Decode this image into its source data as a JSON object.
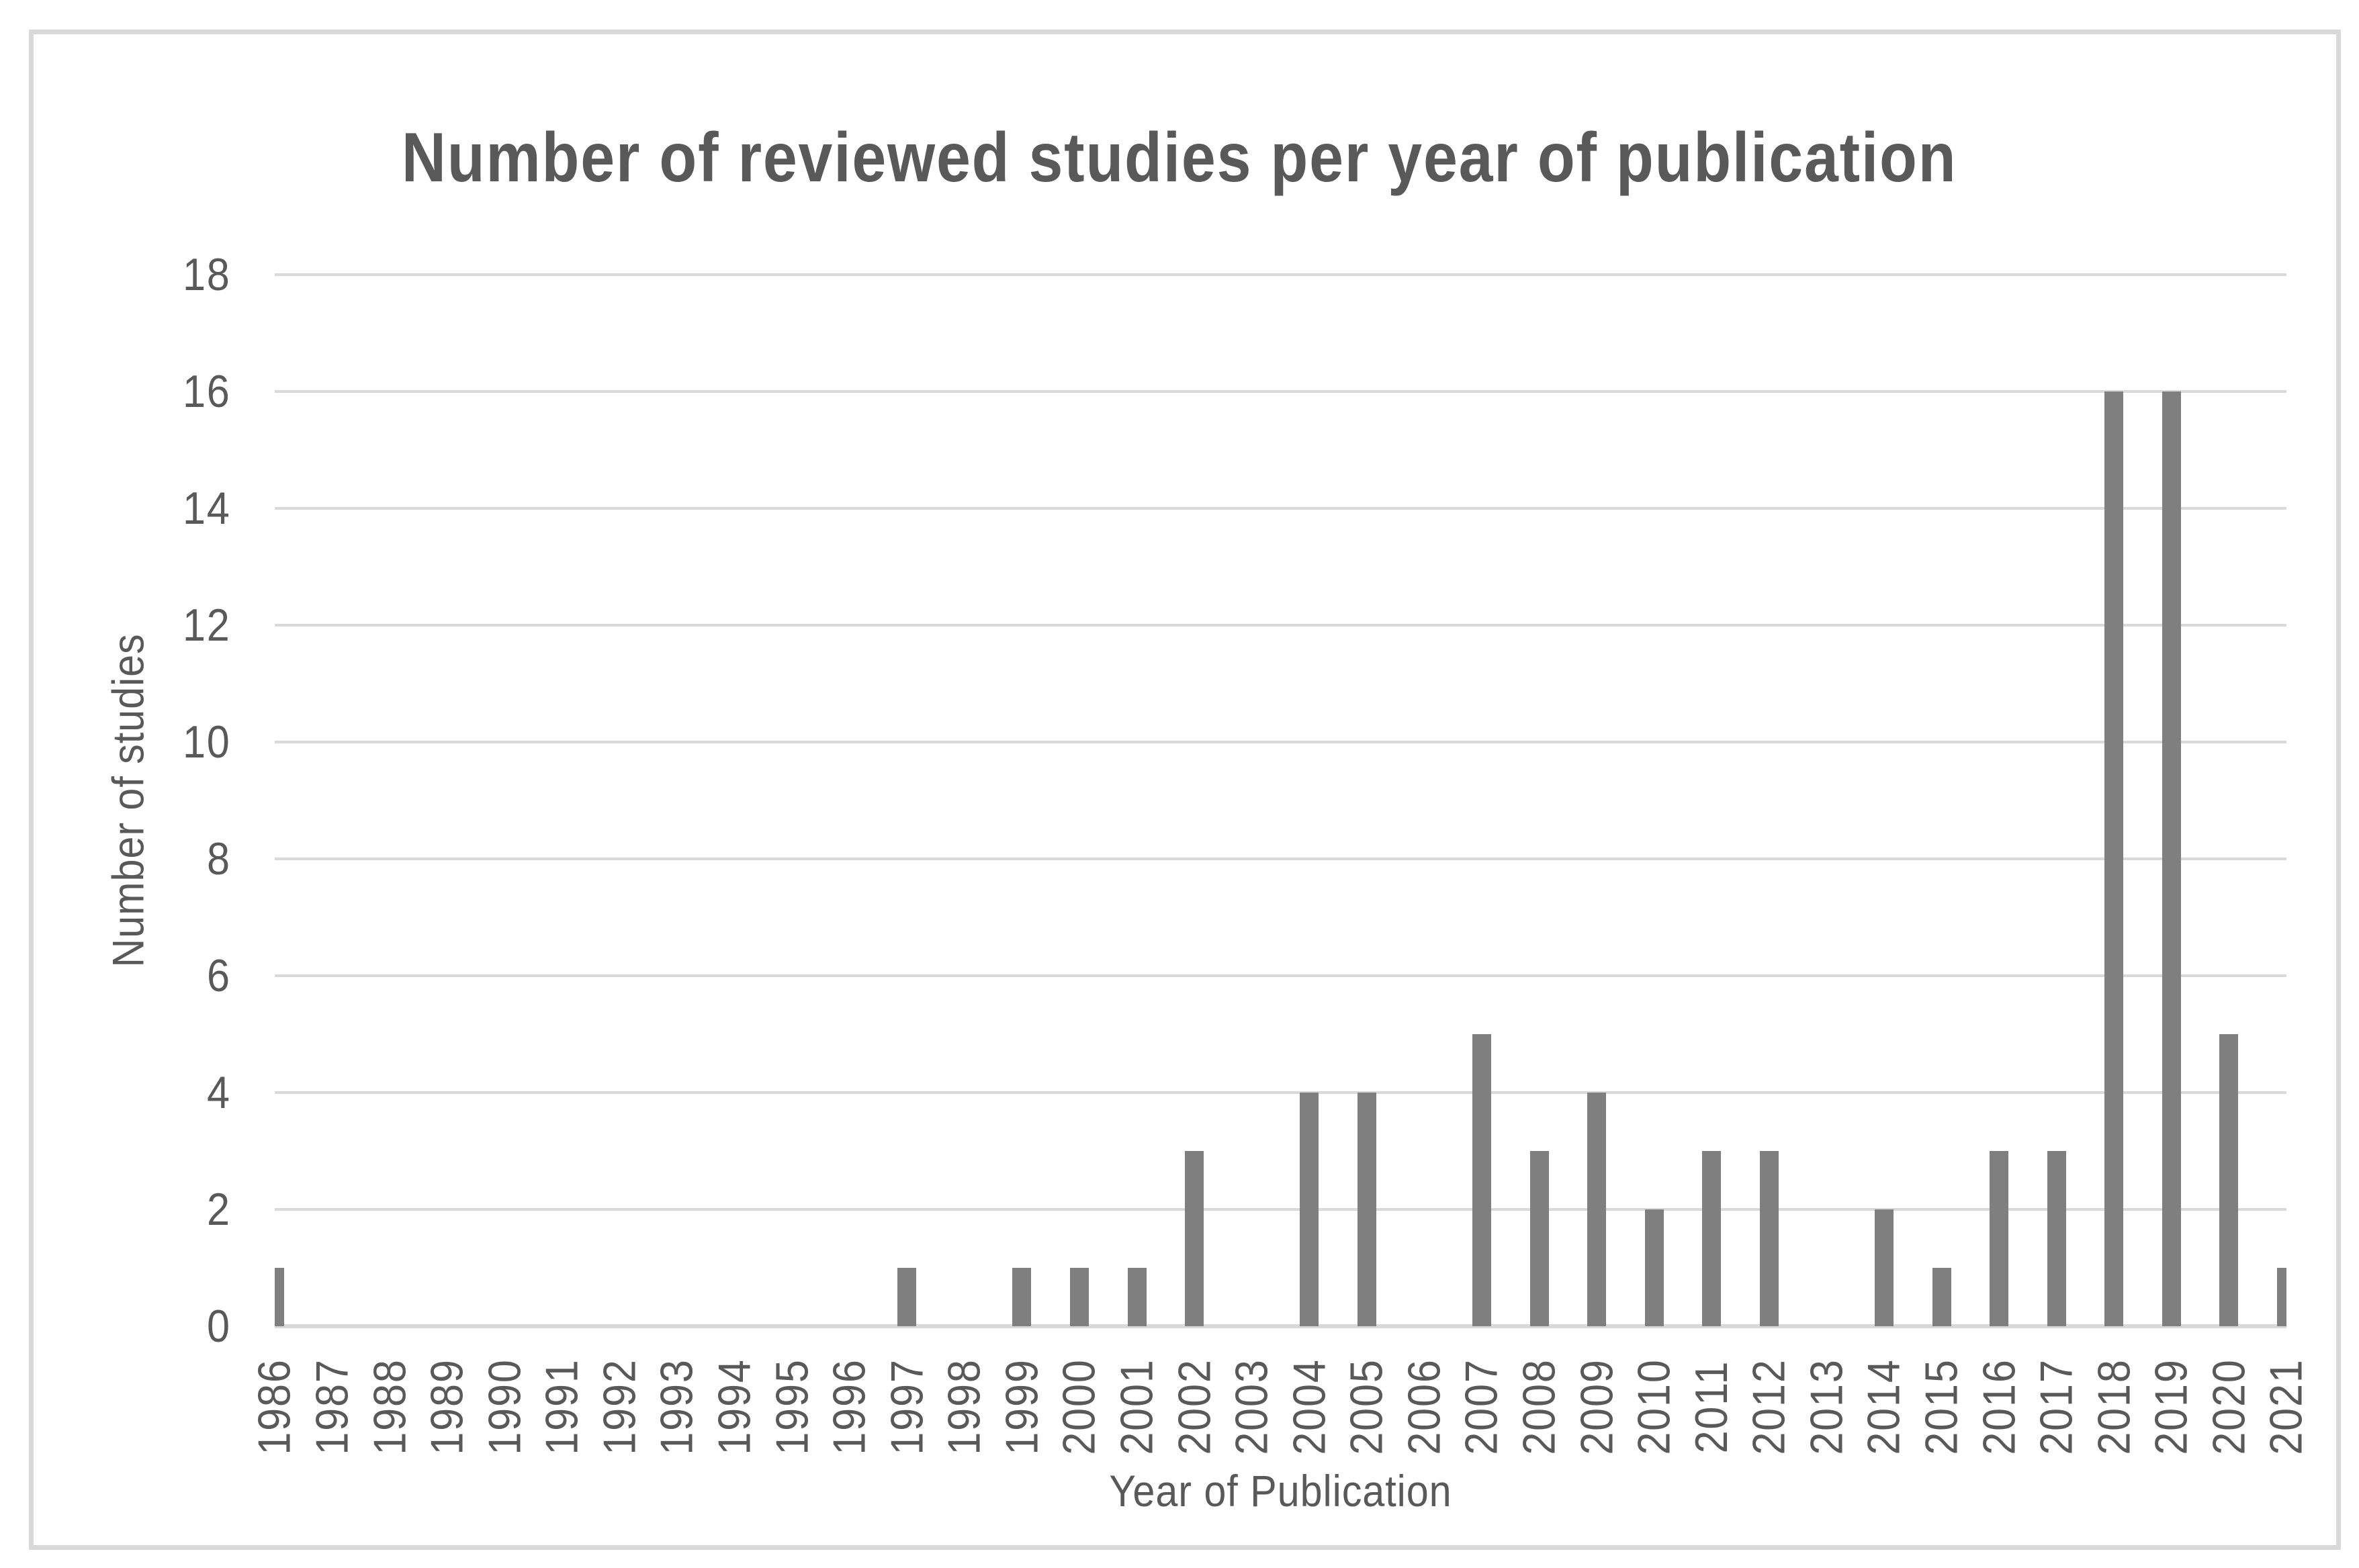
{
  "chart_data": {
    "type": "bar",
    "title": "Number of reviewed studies per year of publication",
    "xlabel": "Year of Publication",
    "ylabel": "Number of studies",
    "categories": [
      "1986",
      "1987",
      "1988",
      "1989",
      "1990",
      "1991",
      "1992",
      "1993",
      "1994",
      "1995",
      "1996",
      "1997",
      "1998",
      "1999",
      "2000",
      "2001",
      "2002",
      "2003",
      "2004",
      "2005",
      "2006",
      "2007",
      "2008",
      "2009",
      "2010",
      "2011",
      "2012",
      "2013",
      "2014",
      "2015",
      "2016",
      "2017",
      "2018",
      "2019",
      "2020",
      "2021"
    ],
    "values": [
      1,
      0,
      0,
      0,
      0,
      0,
      0,
      0,
      0,
      0,
      0,
      1,
      0,
      1,
      1,
      1,
      3,
      0,
      4,
      4,
      0,
      5,
      3,
      4,
      2,
      3,
      3,
      0,
      2,
      1,
      3,
      3,
      16,
      16,
      5,
      1
    ],
    "ylim": [
      0,
      18
    ],
    "yticks": [
      0,
      2,
      4,
      6,
      8,
      10,
      12,
      14,
      16,
      18
    ],
    "grid": true,
    "legend": "none",
    "bar_color": "#7f7f7f",
    "grid_color": "#d9d9d9",
    "text_color": "#595959",
    "frame_color": "#d9d9d9"
  }
}
